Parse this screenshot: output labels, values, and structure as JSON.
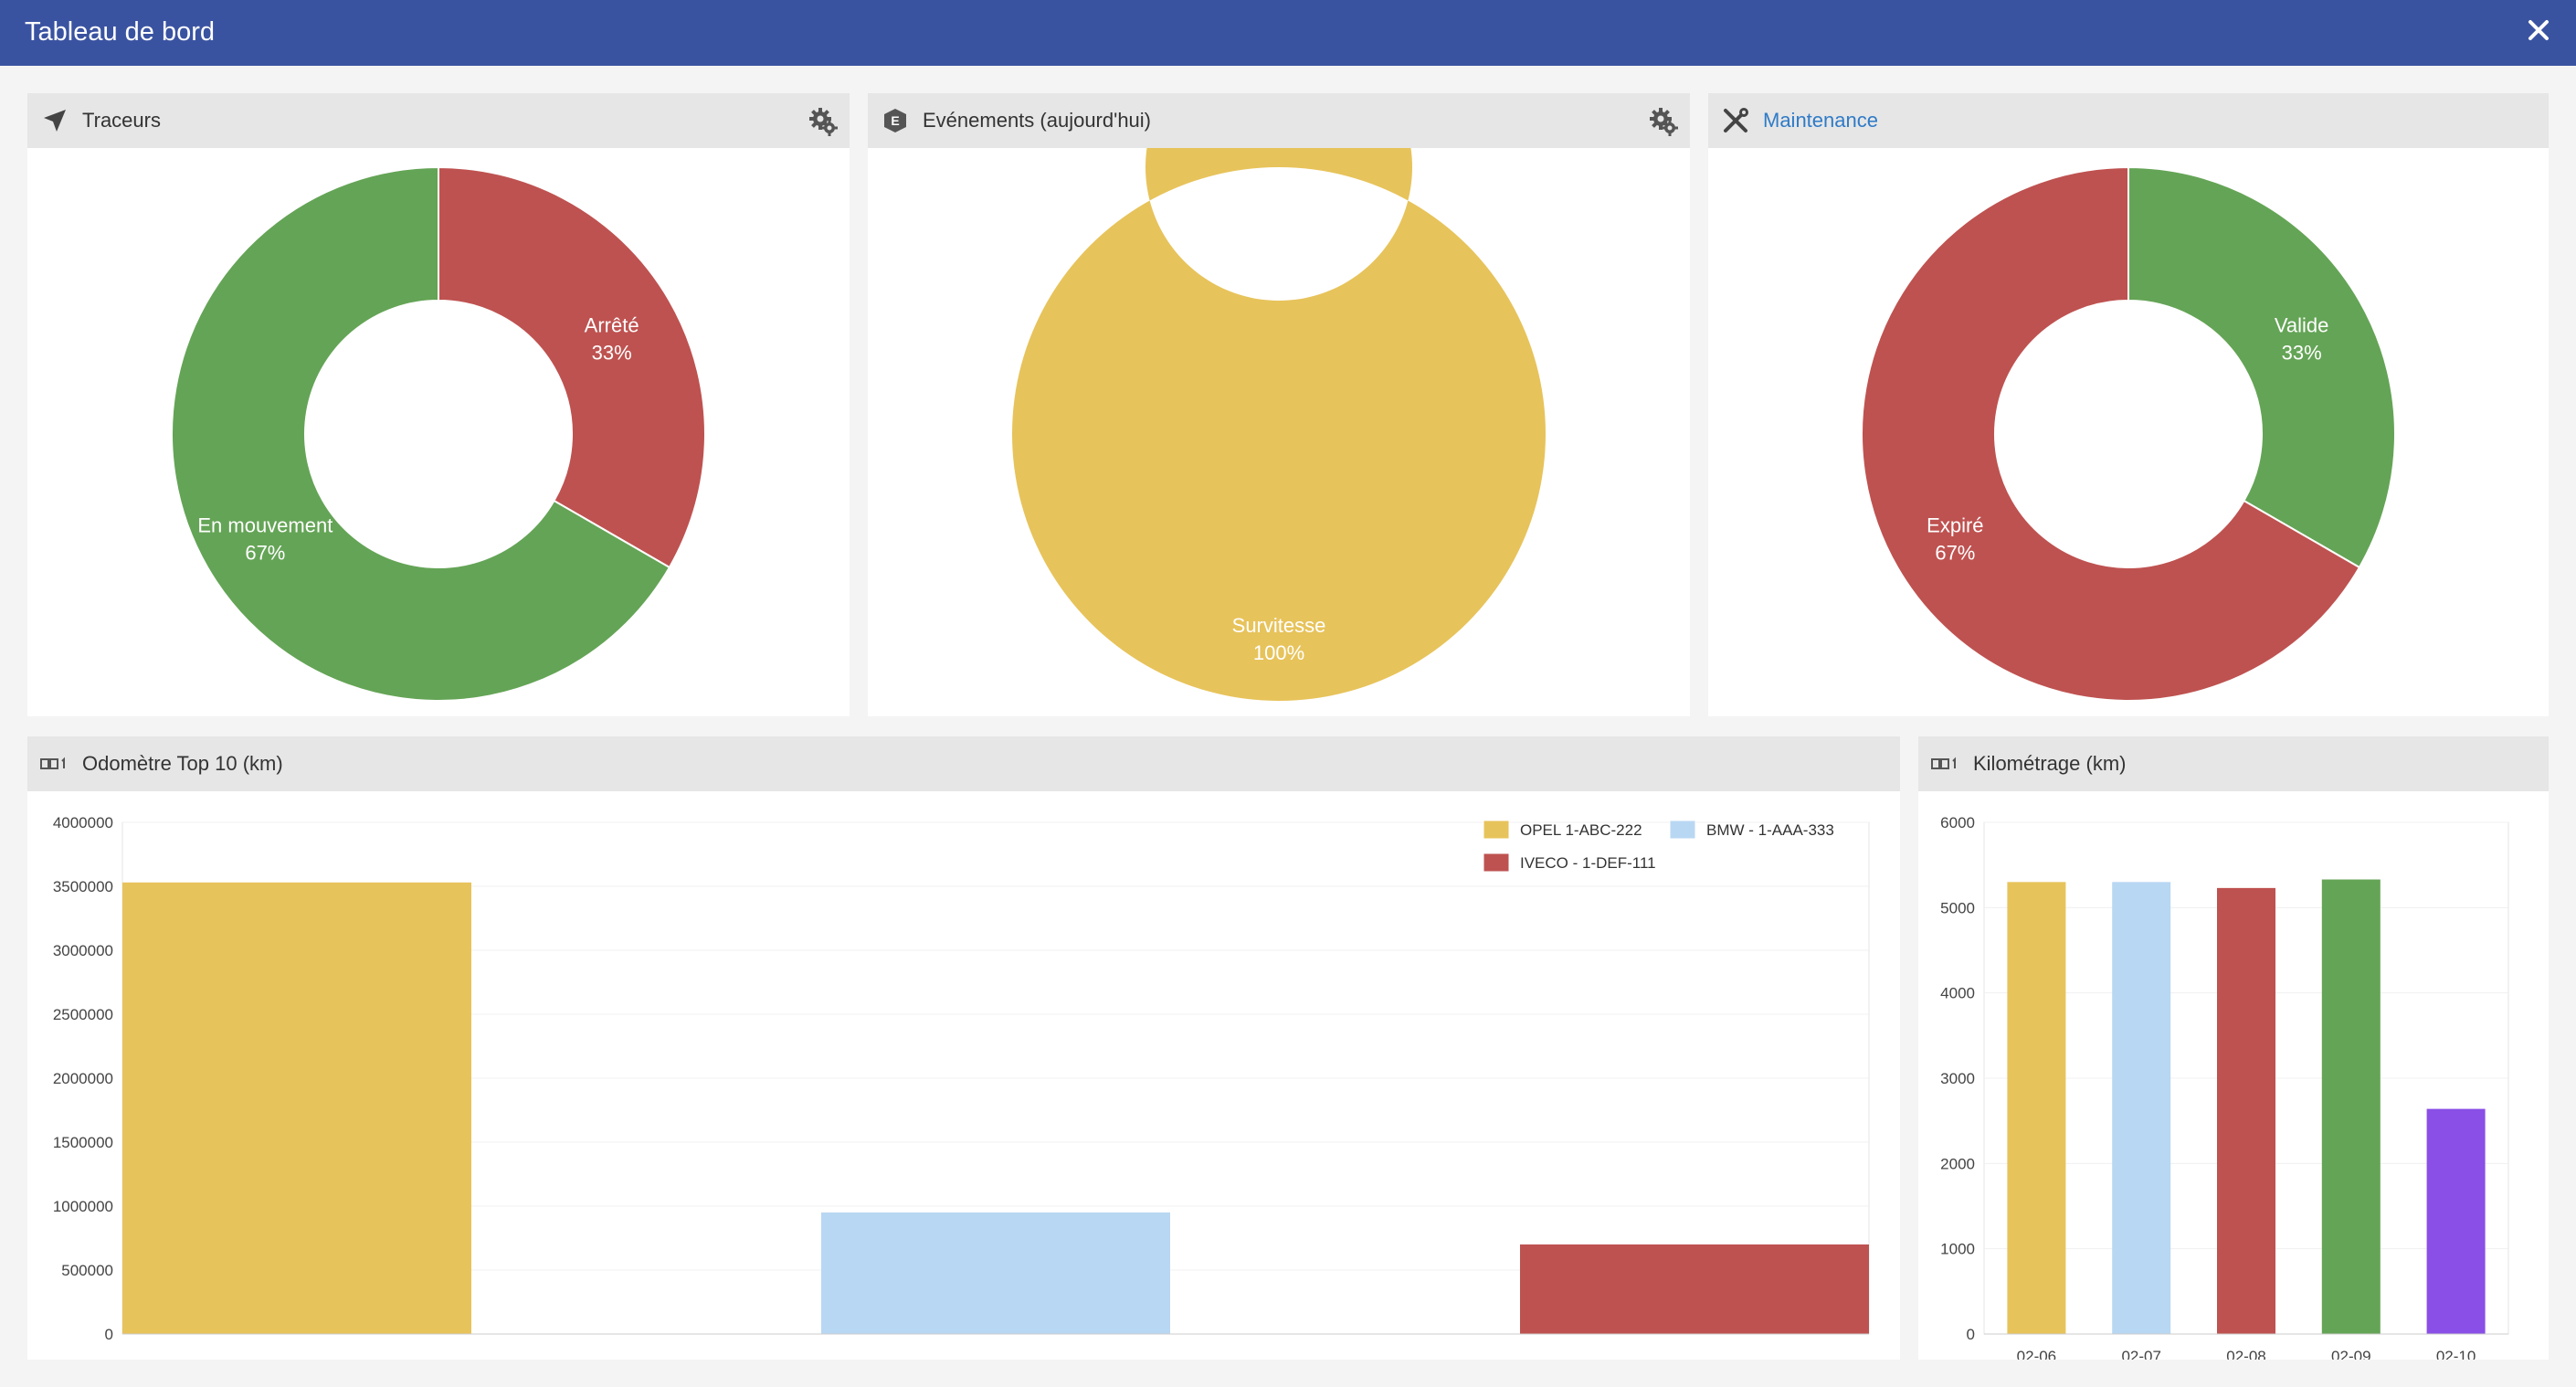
{
  "window": {
    "title": "Tableau de bord"
  },
  "panels": {
    "traceurs": {
      "title": "Traceurs"
    },
    "evenements": {
      "title": "Evénements (aujourd'hui)"
    },
    "maintenance": {
      "title": "Maintenance"
    },
    "odometre": {
      "title": "Odomètre Top 10 (km)"
    },
    "kilometrage": {
      "title": "Kilométrage (km)"
    }
  },
  "chart_data": [
    {
      "type": "pie",
      "title": "Traceurs",
      "slices": [
        {
          "label": "Arrêté",
          "percent_label": "33%",
          "value": 33.33,
          "color": "#be5250"
        },
        {
          "label": "En mouvement",
          "percent_label": "67%",
          "value": 66.67,
          "color": "#64a456"
        }
      ]
    },
    {
      "type": "pie",
      "title": "Evénements (aujourd'hui)",
      "slices": [
        {
          "label": "Survitesse",
          "percent_label": "100%",
          "value": 100,
          "color": "#e7c35b"
        }
      ]
    },
    {
      "type": "pie",
      "title": "Maintenance",
      "slices": [
        {
          "label": "Valide",
          "percent_label": "33%",
          "value": 33.33,
          "color": "#64a456"
        },
        {
          "label": "Expiré",
          "percent_label": "67%",
          "value": 66.67,
          "color": "#be5250"
        }
      ]
    },
    {
      "type": "bar",
      "title": "Odomètre Top 10 (km)",
      "ylim": [
        0,
        4000000
      ],
      "yticks": [
        "0",
        "500000",
        "1000000",
        "1500000",
        "2000000",
        "2500000",
        "3000000",
        "3500000",
        "4000000"
      ],
      "series": [
        {
          "name": "OPEL 1-ABC-222",
          "values": [
            3530000
          ],
          "color": "#e7c35b"
        },
        {
          "name": "BMW - 1-AAA-333",
          "values": [
            950000
          ],
          "color": "#b8d7f3"
        },
        {
          "name": "IVECO - 1-DEF-111",
          "values": [
            700000
          ],
          "color": "#be5250"
        }
      ]
    },
    {
      "type": "bar",
      "title": "Kilométrage (km)",
      "ylim": [
        0,
        6000
      ],
      "yticks": [
        "0",
        "1000",
        "2000",
        "3000",
        "4000",
        "5000",
        "6000"
      ],
      "categories": [
        "02-06",
        "02-07",
        "02-08",
        "02-09",
        "02-10"
      ],
      "values": [
        5300,
        5300,
        5230,
        5330,
        2640
      ],
      "colors": [
        "#e7c35b",
        "#b8d7f3",
        "#be5250",
        "#64a456",
        "#8a4fe6"
      ]
    }
  ]
}
